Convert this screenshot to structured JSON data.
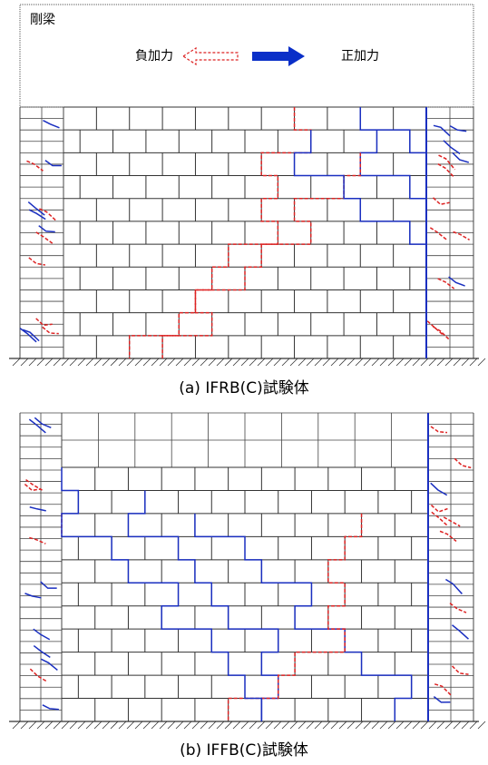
{
  "beam_label": "剛梁",
  "legend": {
    "negative": "負加力",
    "positive": "正加力"
  },
  "captions": [
    "(a) IFRB(C)試験体",
    "(b) IFFB(C)試験体"
  ]
}
